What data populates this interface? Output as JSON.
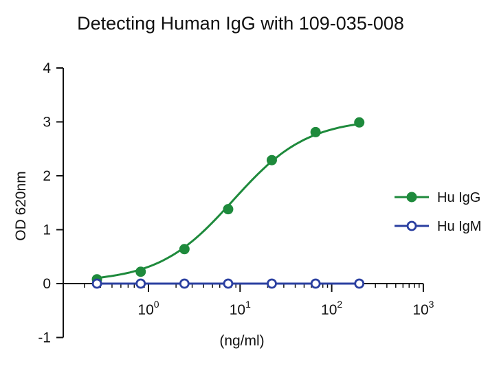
{
  "chart_data": {
    "type": "scatter",
    "title": "Detecting Human IgG with 109-035-008",
    "xlabel": "(ng/ml)",
    "ylabel": "OD 620nm",
    "xscale": "log",
    "xlim": [
      0.1,
      1000
    ],
    "ylim": [
      -1,
      4
    ],
    "yticks": [
      "-1",
      "0",
      "1",
      "2",
      "3",
      "4"
    ],
    "xticks": [
      {
        "base": "10",
        "exp": "0",
        "value": 1
      },
      {
        "base": "10",
        "exp": "1",
        "value": 10
      },
      {
        "base": "10",
        "exp": "2",
        "value": 100
      },
      {
        "base": "10",
        "exp": "3",
        "value": 1000
      }
    ],
    "legend_position": "right",
    "grid": false,
    "series": [
      {
        "name": "Hu IgG",
        "color": "#1e8a3c",
        "marker": "filled-circle",
        "fit": "sigmoidal",
        "x": [
          0.274,
          0.823,
          2.47,
          7.41,
          22.2,
          66.7,
          200
        ],
        "y": [
          0.08,
          0.22,
          0.64,
          1.38,
          2.29,
          2.81,
          2.99
        ]
      },
      {
        "name": "Hu IgM",
        "color": "#2a3fa0",
        "marker": "open-circle",
        "fit": "line",
        "x": [
          0.274,
          0.823,
          2.47,
          7.41,
          22.2,
          66.7,
          200
        ],
        "y": [
          0,
          0,
          0,
          0,
          0,
          0,
          0
        ]
      }
    ]
  }
}
